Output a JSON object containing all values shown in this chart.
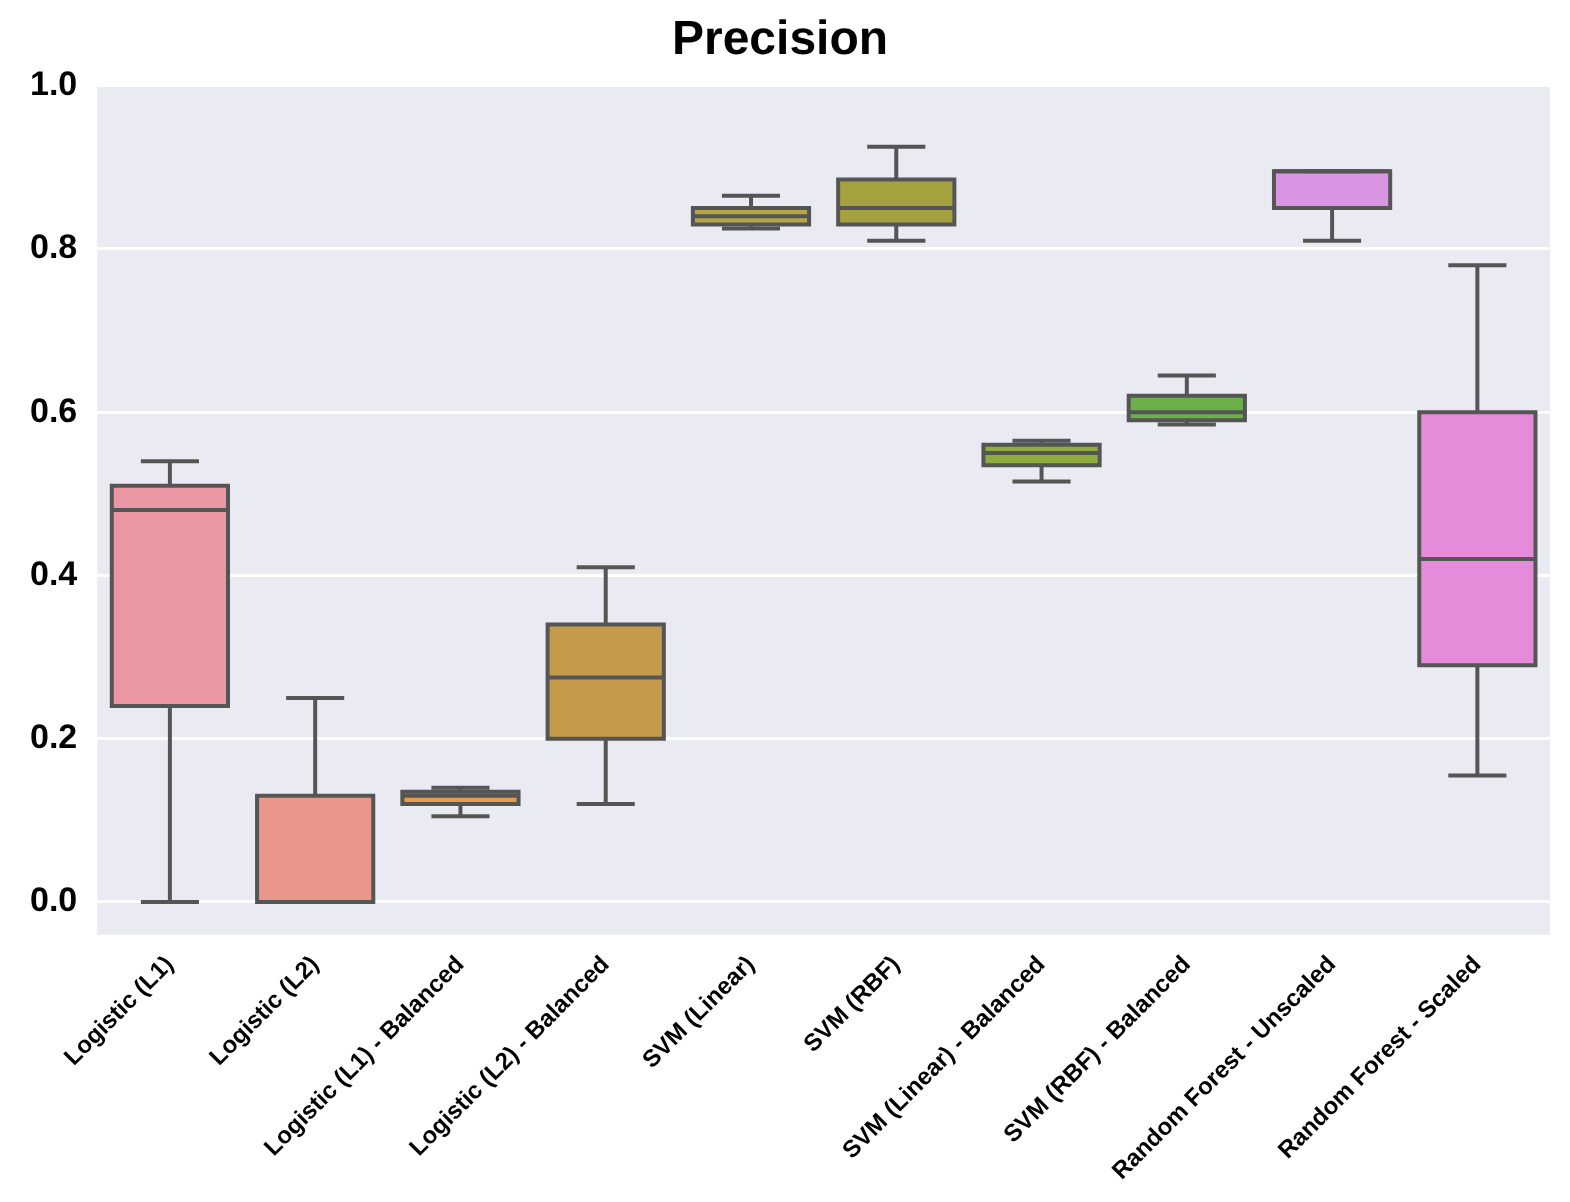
{
  "chart_data": {
    "type": "box",
    "title": "Precision",
    "categories": [
      "Logistic (L1)",
      "Logistic (L2)",
      "Logistic (L1) - Balanced",
      "Logistic (L2) - Balanced",
      "SVM (Linear)",
      "SVM (RBF)",
      "SVM (Linear) - Balanced",
      "SVM (RBF) - Balanced",
      "Random Forest - Unscaled",
      "Random Forest - Scaled"
    ],
    "boxes": [
      {
        "low": 0,
        "q1": 0.24,
        "median": 0.48,
        "q3": 0.51,
        "high": 0.54
      },
      {
        "low": 0,
        "q1": 0,
        "median": 0,
        "q3": 0.13,
        "high": 0.25
      },
      {
        "low": 0.105,
        "q1": 0.12,
        "median": 0.13,
        "q3": 0.135,
        "high": 0.14
      },
      {
        "low": 0.12,
        "q1": 0.2,
        "median": 0.275,
        "q3": 0.34,
        "high": 0.41
      },
      {
        "low": 0.825,
        "q1": 0.83,
        "median": 0.84,
        "q3": 0.85,
        "high": 0.865
      },
      {
        "low": 0.81,
        "q1": 0.83,
        "median": 0.85,
        "q3": 0.885,
        "high": 0.925
      },
      {
        "low": 0.515,
        "q1": 0.535,
        "median": 0.55,
        "q3": 0.56,
        "high": 0.565
      },
      {
        "low": 0.585,
        "q1": 0.59,
        "median": 0.6,
        "q3": 0.62,
        "high": 0.645
      },
      {
        "low": 0.81,
        "q1": 0.85,
        "median": 0.895,
        "q3": 0.895,
        "high": 0.895
      },
      {
        "low": 0.155,
        "q1": 0.29,
        "median": 0.42,
        "q3": 0.6,
        "high": 0.78
      }
    ],
    "colors": [
      "#ea96a3",
      "#e8978a",
      "#e59a4e",
      "#c59a4a",
      "#b8a546",
      "#a3a23f",
      "#8fac3f",
      "#6db04a",
      "#d994e4",
      "#e68bd9"
    ],
    "ylim": [
      -0.04,
      1.0
    ],
    "yticks": [
      {
        "value": 0,
        "label": "0.0"
      },
      0.2,
      0.4,
      0.6,
      0.8,
      {
        "value": 1,
        "label": "1.0"
      }
    ],
    "grid": "y",
    "legend": false
  }
}
